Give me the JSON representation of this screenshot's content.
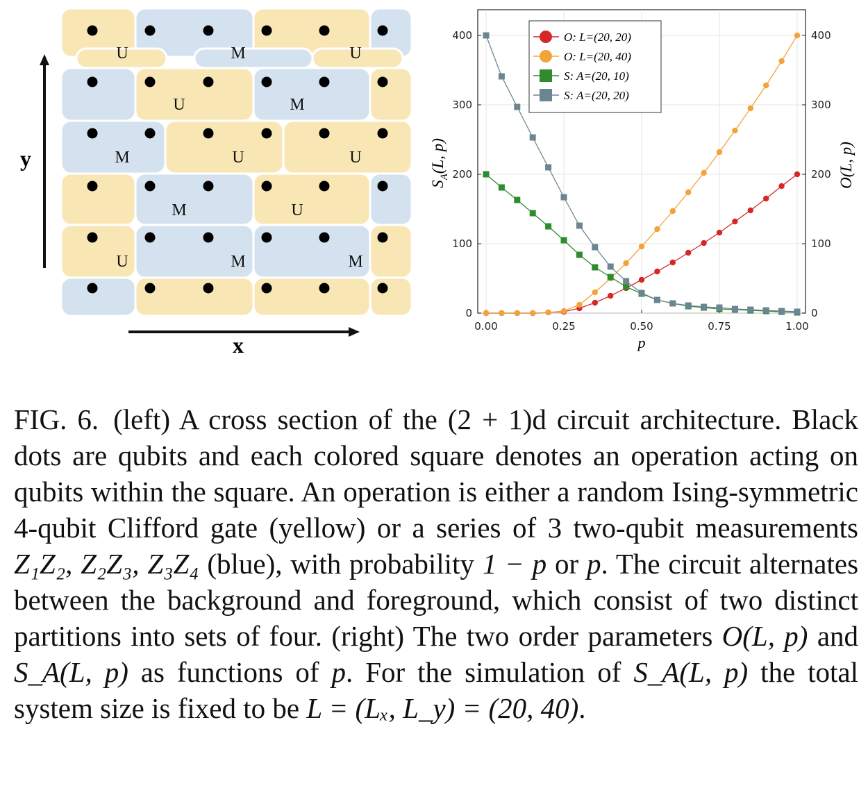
{
  "figure": {
    "left": {
      "x_axis_label": "x",
      "y_axis_label": "y",
      "rows": [
        [
          "",
          "U",
          "",
          "M",
          "",
          "U"
        ],
        [
          "",
          "",
          "U",
          "",
          "M",
          ""
        ],
        [
          "",
          "M",
          "",
          "U",
          "",
          "U"
        ],
        [
          "",
          "",
          "M",
          "",
          "U",
          ""
        ],
        [
          "",
          "U",
          "",
          "M",
          "",
          "M"
        ],
        [
          "",
          "",
          "",
          "",
          "",
          ""
        ]
      ],
      "colors": {
        "yellow": "#f8e7b4",
        "blue": "#d4e2f0"
      }
    },
    "right": {
      "chart_data": {
        "type": "line",
        "xlabel": "p",
        "ylabel_left": "S_A(L, p)",
        "ylabel_right": "O(L, p)",
        "xlim": [
          0,
          1
        ],
        "ylim": [
          0,
          400
        ],
        "x_ticks": [
          "0.00",
          "0.25",
          "0.50",
          "0.75",
          "1.00"
        ],
        "y_ticks": [
          "0",
          "100",
          "200",
          "300",
          "400"
        ],
        "grid": true,
        "legend_position": "top-left",
        "x": [
          0.0,
          0.05,
          0.1,
          0.15,
          0.2,
          0.25,
          0.3,
          0.35,
          0.4,
          0.45,
          0.5,
          0.55,
          0.6,
          0.65,
          0.7,
          0.75,
          0.8,
          0.85,
          0.9,
          0.95,
          1.0
        ],
        "series": [
          {
            "name": "O: L=(20, 20)",
            "marker": "circle",
            "color": "#d62728",
            "values": [
              0,
              0,
              0,
              0,
              1,
              2,
              7,
              15,
              25,
              36,
              48,
              60,
              73,
              87,
              101,
              116,
              132,
              148,
              165,
              183,
              200
            ]
          },
          {
            "name": "O: L=(20, 40)",
            "marker": "circle",
            "color": "#f2a33a",
            "values": [
              0,
              0,
              0,
              0,
              1,
              3,
              12,
              30,
              50,
              72,
              96,
              121,
              147,
              174,
              202,
              232,
              263,
              295,
              328,
              363,
              400
            ]
          },
          {
            "name": "S: A=(20, 10)",
            "marker": "square",
            "color": "#2e8b2e",
            "values": [
              200,
              181,
              163,
              144,
              125,
              105,
              84,
              66,
              52,
              38,
              28,
              19,
              14,
              10,
              8,
              6,
              5,
              4,
              3,
              2,
              1
            ]
          },
          {
            "name": "S: A=(20, 20)",
            "marker": "square",
            "color": "#6c8592",
            "values": [
              400,
              341,
              297,
              253,
              210,
              167,
              126,
              95,
              67,
              46,
              29,
              19,
              14,
              11,
              9,
              8,
              6,
              5,
              4,
              3,
              2
            ]
          }
        ]
      }
    }
  },
  "caption": {
    "label": "FIG. 6.",
    "segments": [
      "(left) A cross section of the ",
      "(2 + 1)d",
      " circuit architecture. Black dots are qubits and each colored square denotes an operation acting on qubits within the square. An operation is either a random Ising-symmetric 4-qubit Clifford gate (yellow) or a series of 3 two-qubit measurements ",
      "Z₁Z₂, Z₂Z₃, Z₃Z₄",
      " (blue), with probability ",
      "1 − p",
      " or ",
      "p",
      ". The circuit alternates between the background and foreground, which consist of two distinct partitions into sets of four. (right) The two order parameters ",
      "O(L, p)",
      " and ",
      "S_A(L, p)",
      " as functions of ",
      "p",
      ". For the simulation of ",
      "S_A(L, p)",
      " the total system size is fixed to be ",
      "L = (Lₓ, L_y) = (20, 40)",
      "."
    ]
  }
}
